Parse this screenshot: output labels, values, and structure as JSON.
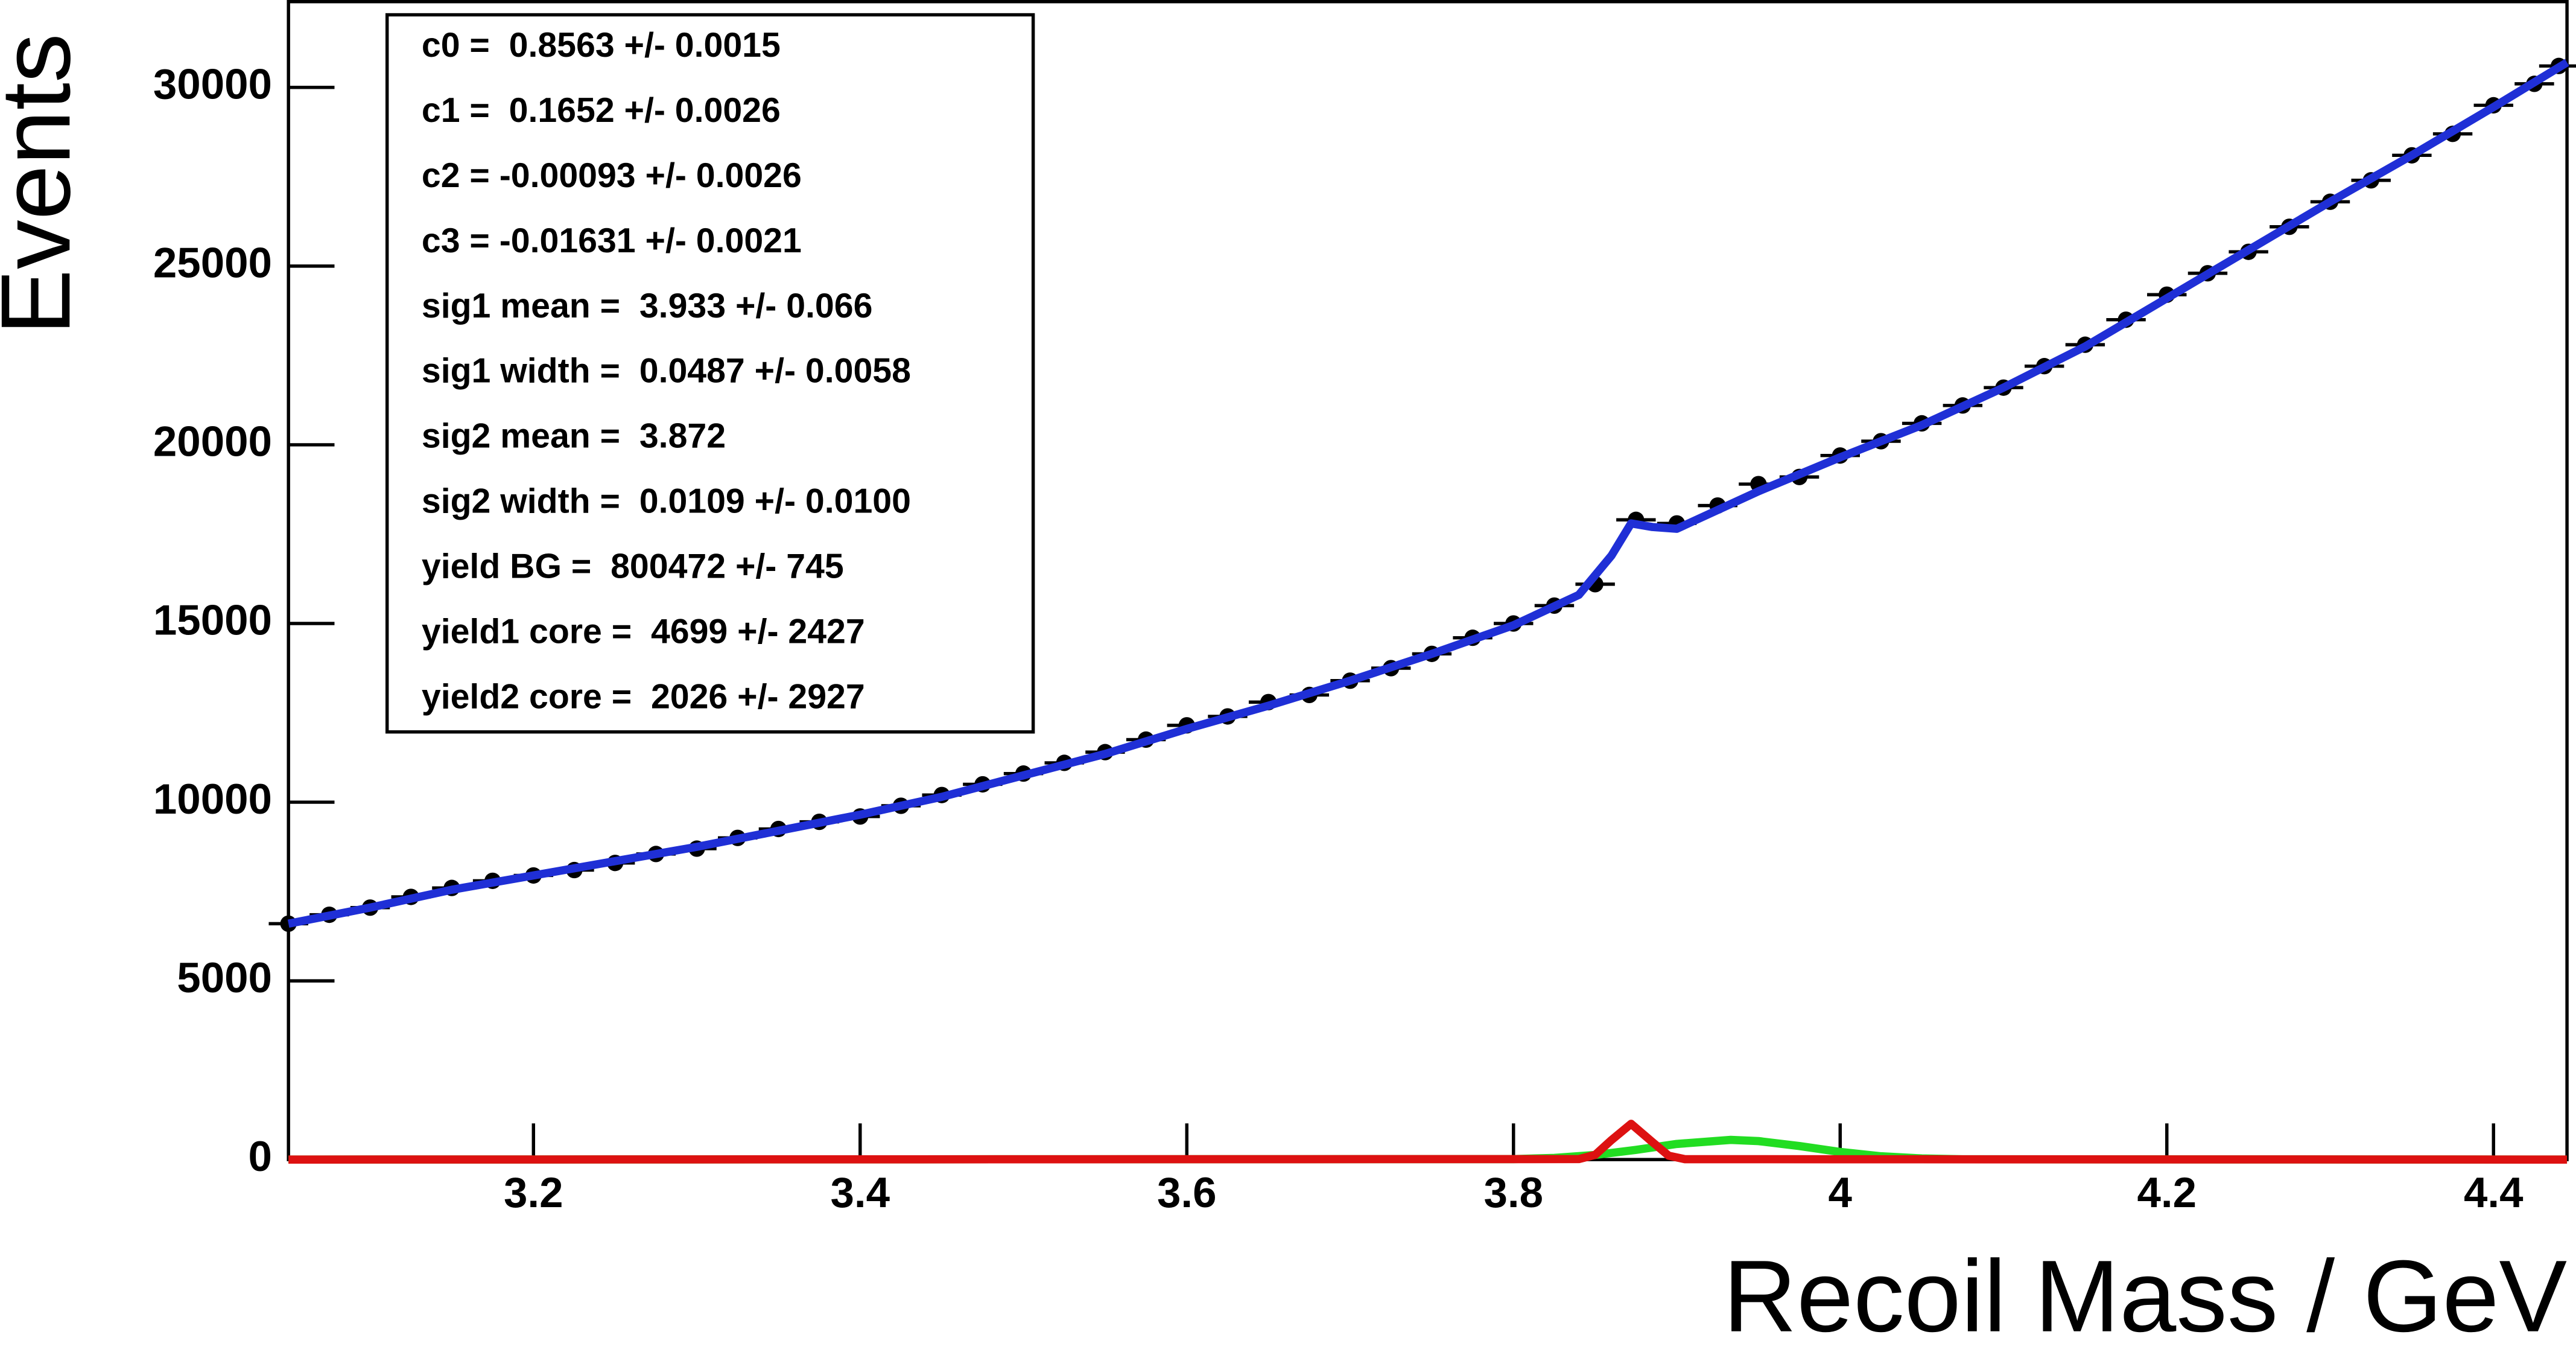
{
  "chart_data": {
    "type": "line",
    "xlabel": "Recoil Mass / GeV",
    "ylabel": "Events",
    "xlim": [
      3.05,
      4.445
    ],
    "ylim": [
      0,
      32400
    ],
    "xticks": [
      3.2,
      3.4,
      3.6,
      3.8,
      4,
      4.2,
      4.4
    ],
    "yticks": [
      0,
      5000,
      10000,
      15000,
      20000,
      25000,
      30000
    ],
    "stats": [
      "c0 =  0.8563 +/- 0.0015",
      "c1 =  0.1652 +/- 0.0026",
      "c2 = -0.00093 +/- 0.0026",
      "c3 = -0.01631 +/- 0.0021",
      "sig1 mean =  3.933 +/- 0.066",
      "sig1 width =  0.0487 +/- 0.0058",
      "sig2 mean =  3.872",
      "sig2 width =  0.0109 +/- 0.0100",
      "yield BG =  800472 +/- 745",
      "yield1 core =  4699 +/- 2427",
      "yield2 core =  2026 +/- 2927"
    ],
    "series": [
      {
        "type": "scatter",
        "color": "#000000",
        "x": [
          3.05,
          3.075,
          3.1,
          3.125,
          3.15,
          3.175,
          3.2,
          3.225,
          3.25,
          3.275,
          3.3,
          3.325,
          3.35,
          3.375,
          3.4,
          3.425,
          3.45,
          3.475,
          3.5,
          3.525,
          3.55,
          3.575,
          3.6,
          3.625,
          3.65,
          3.675,
          3.7,
          3.725,
          3.75,
          3.775,
          3.8,
          3.825,
          3.85,
          3.875,
          3.9,
          3.925,
          3.95,
          3.975,
          4.0,
          4.025,
          4.05,
          4.075,
          4.1,
          4.125,
          4.15,
          4.175,
          4.2,
          4.225,
          4.25,
          4.275,
          4.3,
          4.325,
          4.35,
          4.375,
          4.4,
          4.425,
          4.44
        ],
        "values": [
          6600,
          6850,
          7050,
          7350,
          7600,
          7800,
          7950,
          8100,
          8300,
          8550,
          8700,
          9000,
          9250,
          9450,
          9600,
          9900,
          10200,
          10500,
          10800,
          11100,
          11400,
          11750,
          12150,
          12400,
          12800,
          13000,
          13400,
          13750,
          14150,
          14600,
          15000,
          15500,
          16100,
          17900,
          17800,
          18300,
          18900,
          19100,
          19700,
          20100,
          20600,
          21100,
          21600,
          22200,
          22800,
          23500,
          24200,
          24800,
          25400,
          26100,
          26800,
          27400,
          28100,
          28700,
          29500,
          30100,
          30600
        ]
      },
      {
        "type": "line",
        "color": "#1f2fd6",
        "x": [
          3.05,
          3.1,
          3.15,
          3.2,
          3.25,
          3.3,
          3.35,
          3.4,
          3.45,
          3.5,
          3.55,
          3.6,
          3.65,
          3.7,
          3.75,
          3.8,
          3.84,
          3.86,
          3.872,
          3.885,
          3.9,
          3.95,
          4.0,
          4.05,
          4.1,
          4.15,
          4.2,
          4.25,
          4.3,
          4.35,
          4.4,
          4.445
        ],
        "values": [
          6600,
          7050,
          7550,
          7950,
          8350,
          8750,
          9200,
          9650,
          10150,
          10750,
          11350,
          12050,
          12700,
          13400,
          14150,
          14950,
          15800,
          16900,
          17800,
          17700,
          17650,
          18700,
          19650,
          20550,
          21600,
          22750,
          24100,
          25450,
          26800,
          28100,
          29450,
          30700
        ]
      },
      {
        "type": "line",
        "color": "#22dd22",
        "x": [
          3.05,
          3.8,
          3.825,
          3.85,
          3.875,
          3.9,
          3.933,
          3.95,
          3.975,
          4.0,
          4.025,
          4.05,
          4.075,
          4.445
        ],
        "values": [
          0,
          13,
          47,
          129,
          271,
          437,
          550,
          517,
          379,
          213,
          92,
          31,
          8,
          0
        ]
      },
      {
        "type": "line",
        "color": "#dd1111",
        "x": [
          3.05,
          3.84,
          3.85,
          3.86,
          3.872,
          3.885,
          3.895,
          3.905,
          4.445
        ],
        "values": [
          0,
          14,
          131,
          546,
          1000,
          492,
          108,
          10,
          0
        ]
      }
    ]
  }
}
